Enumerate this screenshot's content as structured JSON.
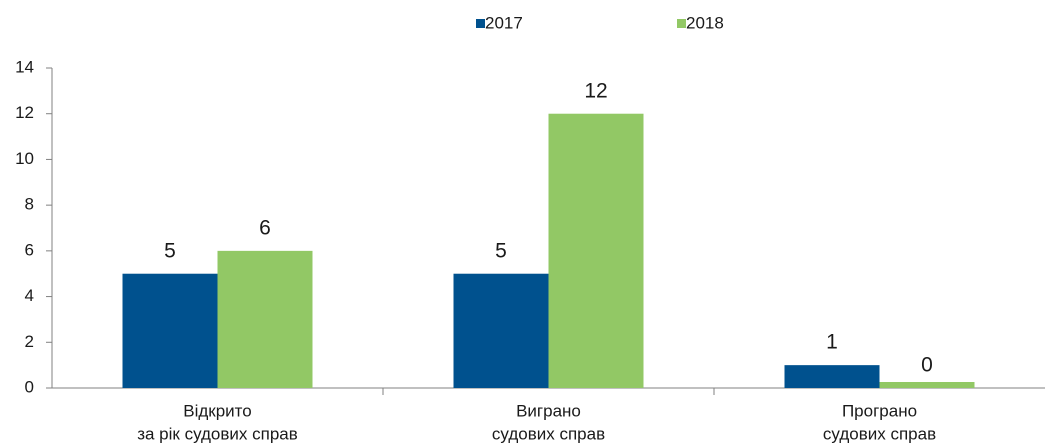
{
  "chart_data": {
    "type": "bar",
    "categories": [
      [
        "Відкрито",
        "за рік судових справ"
      ],
      [
        "Виграно",
        "судових справ"
      ],
      [
        "Програно",
        "судових справ"
      ]
    ],
    "series": [
      {
        "name": "2017",
        "color": "#00518e",
        "values": [
          5,
          5,
          1
        ]
      },
      {
        "name": "2018",
        "color": "#92c865",
        "values": [
          6,
          12,
          0
        ]
      }
    ],
    "ylim": [
      0,
      14
    ],
    "yticks": [
      0,
      2,
      4,
      6,
      8,
      10,
      12,
      14
    ],
    "grid": false,
    "legend": "top"
  }
}
